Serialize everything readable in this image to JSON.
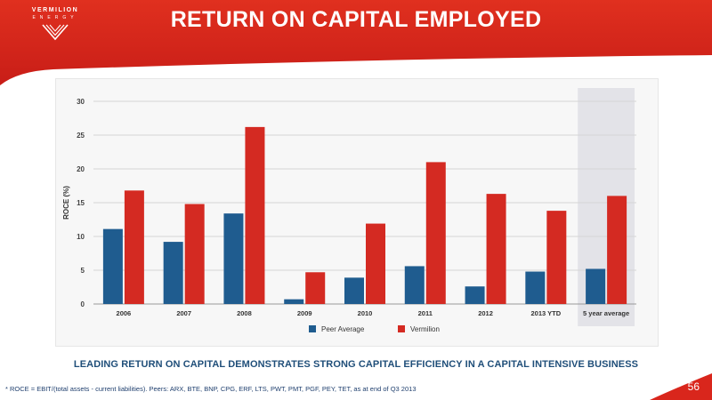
{
  "colors": {
    "header_red": "#d9261c",
    "peer": "#1f5c8f",
    "vermilion": "#d42a22",
    "highlight_band": "#e3e3e8",
    "tagline": "#1f4e79"
  },
  "logo": {
    "word": "VERMILION",
    "sub": "ENERGY",
    "icon": "vermilion-chevron-logo-icon"
  },
  "header": {
    "title": "RETURN ON CAPITAL EMPLOYED"
  },
  "chart_data": {
    "type": "bar",
    "categories": [
      "2006",
      "2007",
      "2008",
      "2009",
      "2010",
      "2011",
      "2012",
      "2013 YTD",
      "5 year average"
    ],
    "series": [
      {
        "name": "Peer Average",
        "values": [
          11.1,
          9.2,
          13.4,
          0.7,
          3.9,
          5.6,
          2.6,
          4.8,
          5.2
        ]
      },
      {
        "name": "Vermilion",
        "values": [
          16.8,
          14.8,
          26.2,
          4.7,
          11.9,
          21.0,
          16.3,
          13.8,
          16.0
        ]
      }
    ],
    "xlabel": "",
    "ylabel": "ROCE (%)",
    "ylim": [
      0,
      30
    ],
    "yticks": [
      0,
      5,
      10,
      15,
      20,
      25,
      30
    ],
    "highlighted_category": "5 year average",
    "legend": "bottom-center",
    "grid": true
  },
  "tagline": "LEADING RETURN ON CAPITAL DEMONSTRATES STRONG CAPITAL EFFICIENCY IN A CAPITAL INTENSIVE BUSINESS",
  "footnote": "* ROCE = EBIT/(total assets - current liabilities).  Peers: ARX, BTE, BNP, CPG, ERF, LTS, PWT, PMT, PGF, PEY, TET, as at end of Q3 2013",
  "page_number": "56"
}
